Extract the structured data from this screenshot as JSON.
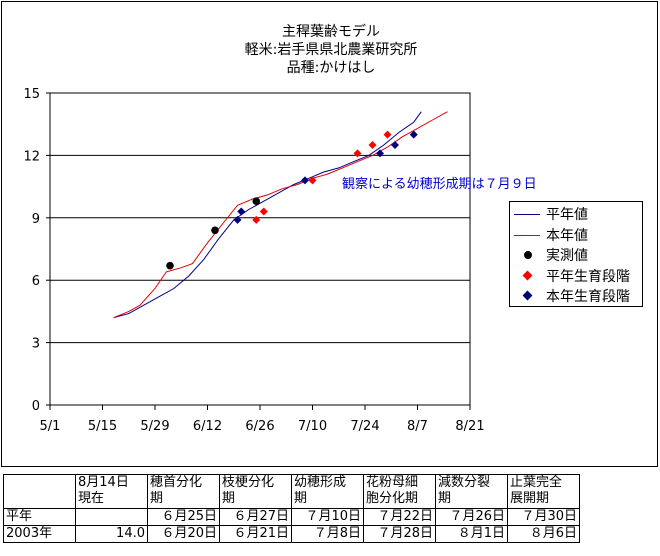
{
  "chart_data": {
    "type": "line",
    "title": [
      "主稈葉齢モデル",
      "軽米:岩手県県北農業研究所",
      "品種:かけはし"
    ],
    "xlabel": "",
    "ylabel": "",
    "x_ticks": [
      "5/1",
      "5/15",
      "5/29",
      "6/12",
      "6/26",
      "7/10",
      "7/24",
      "8/7",
      "8/21"
    ],
    "ylim": [
      0,
      15
    ],
    "y_ticks": [
      0,
      3,
      6,
      9,
      12,
      15
    ],
    "grid": true,
    "legend_position": "right",
    "annotation": "観察による幼穂形成期は７月９日",
    "series": [
      {
        "name": "平年値",
        "kind": "line",
        "color": "#00008B",
        "points": [
          [
            "5/18",
            4.2
          ],
          [
            "5/22",
            4.4
          ],
          [
            "5/26",
            4.8
          ],
          [
            "5/30",
            5.2
          ],
          [
            "6/3",
            5.6
          ],
          [
            "6/7",
            6.2
          ],
          [
            "6/11",
            7.0
          ],
          [
            "6/15",
            8.0
          ],
          [
            "6/19",
            8.9
          ],
          [
            "6/23",
            9.4
          ],
          [
            "6/27",
            9.8
          ],
          [
            "7/1",
            10.2
          ],
          [
            "7/5",
            10.6
          ],
          [
            "7/9",
            10.9
          ],
          [
            "7/13",
            11.2
          ],
          [
            "7/17",
            11.4
          ],
          [
            "7/21",
            11.7
          ],
          [
            "7/25",
            12.0
          ],
          [
            "7/29",
            12.5
          ],
          [
            "8/2",
            13.1
          ],
          [
            "8/6",
            13.6
          ],
          [
            "8/8",
            14.1
          ]
        ]
      },
      {
        "name": "本年値",
        "kind": "line",
        "color": "#E00000",
        "points": [
          [
            "5/18",
            4.2
          ],
          [
            "5/22",
            4.5
          ],
          [
            "5/25",
            4.8
          ],
          [
            "5/29",
            5.6
          ],
          [
            "6/1",
            6.4
          ],
          [
            "6/5",
            6.6
          ],
          [
            "6/8",
            6.8
          ],
          [
            "6/12",
            7.8
          ],
          [
            "6/16",
            8.7
          ],
          [
            "6/20",
            9.6
          ],
          [
            "6/24",
            9.9
          ],
          [
            "6/28",
            10.1
          ],
          [
            "7/2",
            10.4
          ],
          [
            "7/6",
            10.6
          ],
          [
            "7/10",
            10.9
          ],
          [
            "7/14",
            11.1
          ],
          [
            "7/18",
            11.4
          ],
          [
            "7/22",
            11.7
          ],
          [
            "7/26",
            12.0
          ],
          [
            "7/30",
            12.4
          ],
          [
            "8/3",
            12.9
          ],
          [
            "8/7",
            13.3
          ],
          [
            "8/11",
            13.7
          ],
          [
            "8/15",
            14.1
          ]
        ]
      },
      {
        "name": "実測値",
        "kind": "circle",
        "color": "#000000",
        "points": [
          [
            "6/2",
            6.7
          ],
          [
            "6/14",
            8.4
          ],
          [
            "6/25",
            9.8
          ]
        ]
      },
      {
        "name": "平年生育段階",
        "kind": "diamond",
        "color": "#FF0000",
        "points": [
          [
            "6/25",
            8.9
          ],
          [
            "6/27",
            9.3
          ],
          [
            "7/10",
            10.8
          ],
          [
            "7/22",
            12.1
          ],
          [
            "7/26",
            12.5
          ],
          [
            "7/30",
            13.0
          ]
        ]
      },
      {
        "name": "本年生育段階",
        "kind": "diamond",
        "color": "#00007F",
        "points": [
          [
            "6/20",
            8.9
          ],
          [
            "6/21",
            9.3
          ],
          [
            "7/8",
            10.8
          ],
          [
            "7/28",
            12.1
          ],
          [
            "8/1",
            12.5
          ],
          [
            "8/6",
            13.0
          ]
        ]
      }
    ]
  },
  "table": {
    "headers": [
      [
        "",
        ""
      ],
      [
        "8月14日",
        "現在"
      ],
      [
        "穂首分化",
        "期"
      ],
      [
        "枝梗分化",
        "期"
      ],
      [
        "幼穂形成",
        "期"
      ],
      [
        "花粉母細",
        "胞分化期"
      ],
      [
        "減数分裂",
        "期"
      ],
      [
        "止葉完全",
        "展開期"
      ]
    ],
    "rows": [
      [
        "平年",
        "",
        "６月25日",
        "６月27日",
        "７月10日",
        "７月22日",
        "７月26日",
        "７月30日"
      ],
      [
        "2003年",
        "14.0",
        "６月20日",
        "６月21日",
        "７月8日",
        "７月28日",
        "８月1日",
        "８月6日"
      ]
    ]
  }
}
